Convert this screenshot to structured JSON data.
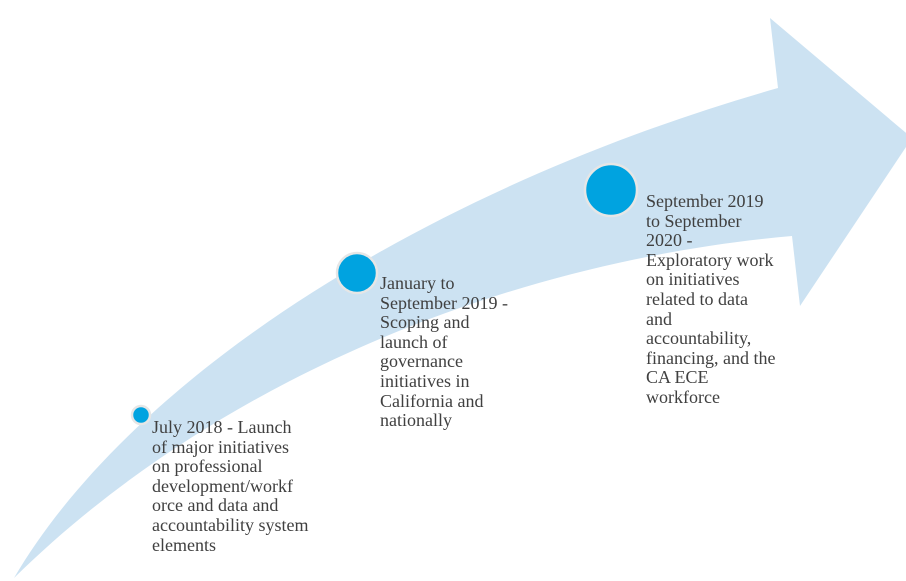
{
  "milestones": [
    {
      "lines": [
        "July 2018 - Launch",
        "of major initiatives",
        "on professional",
        "development/workf",
        "orce and data and",
        "accountability system",
        "elements"
      ]
    },
    {
      "lines": [
        "January to",
        "September 2019 -",
        "Scoping and",
        "launch of",
        "governance",
        "initiatives in",
        "California and",
        "nationally"
      ]
    },
    {
      "lines": [
        "September 2019",
        "to September",
        "2020 -",
        "Exploratory work",
        "on initiatives",
        "related to data",
        "and",
        "accountability,",
        "financing, and the",
        "CA ECE",
        "workforce"
      ]
    }
  ]
}
